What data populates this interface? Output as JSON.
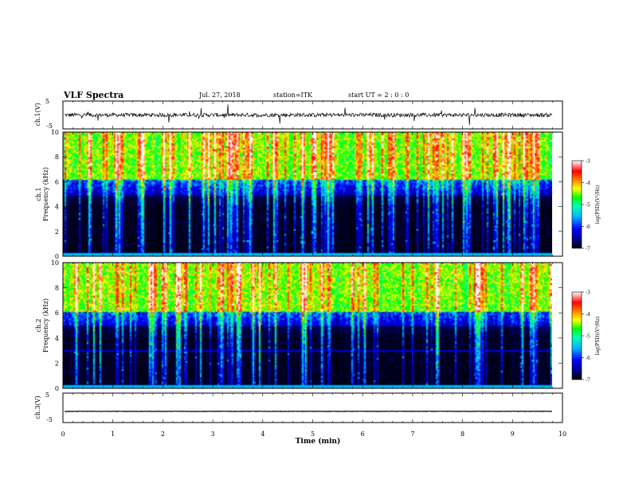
{
  "header": {
    "title": "VLF Spectra",
    "date": "Jul. 27, 2018",
    "station": "station=ITK",
    "start": "start UT =  2 : 0  : 0"
  },
  "chart_data": [
    {
      "type": "line",
      "name": "ch1-waveform",
      "ylabel": "ch.1(V)",
      "ylim": [
        -5,
        5
      ],
      "yticks": [
        "5",
        "-5"
      ],
      "xlim": [
        0,
        10
      ],
      "baseline": 0
    },
    {
      "type": "heatmap",
      "name": "ch1-spectrogram",
      "ylabel_line1": "ch.1",
      "ylabel_line2": "Frequency (kHz)",
      "ylim": [
        0,
        10
      ],
      "yticks": [
        "0",
        "2",
        "4",
        "6",
        "8",
        "10"
      ],
      "xlim": [
        0,
        10
      ],
      "data_end_min": 9.8,
      "colorbar": {
        "label": "log(PSD)(V²/Hz)",
        "ticks": [
          "-3",
          "-4",
          "-5",
          "-6",
          "-7"
        ],
        "range": [
          -7,
          -3
        ]
      }
    },
    {
      "type": "heatmap",
      "name": "ch2-spectrogram",
      "ylabel_line1": "ch.2",
      "ylabel_line2": "Frequency (kHz)",
      "ylim": [
        0,
        10
      ],
      "yticks": [
        "0",
        "2",
        "4",
        "6",
        "8",
        "10"
      ],
      "xlim": [
        0,
        10
      ],
      "data_end_min": 9.8,
      "colorbar": {
        "label": "log(PSD)(V²/Hz)",
        "ticks": [
          "-3",
          "-4",
          "-5",
          "-6",
          "-7"
        ],
        "range": [
          -7,
          -3
        ]
      }
    },
    {
      "type": "line",
      "name": "ch3-waveform",
      "ylabel": "ch.3(V)",
      "ylim": [
        -5,
        5
      ],
      "yticks": [
        "5",
        "-5"
      ],
      "xlim": [
        0,
        10
      ],
      "baseline": -1.2
    }
  ],
  "xaxis": {
    "label": "Time (min)",
    "ticks": [
      "0",
      "1",
      "2",
      "3",
      "4",
      "5",
      "6",
      "7",
      "8",
      "9",
      "10"
    ]
  },
  "colormap": [
    "#000000",
    "#00008b",
    "#0000ff",
    "#00b4ff",
    "#00ffb4",
    "#00ff00",
    "#ffff00",
    "#ff8000",
    "#ff0000",
    "#ffffff"
  ]
}
